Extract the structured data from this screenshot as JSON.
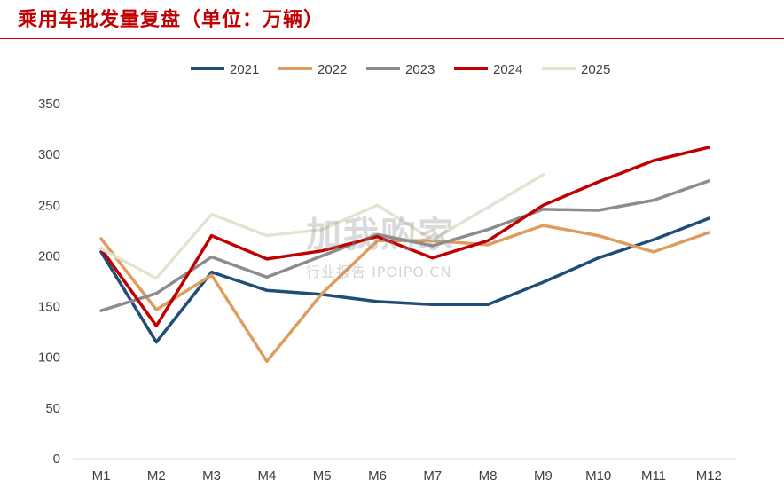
{
  "title": "乘用车批发量复盘（单位：万辆）",
  "watermark": {
    "main": "加我购家",
    "sub": "行业报告 IPOIPO.CN"
  },
  "chart_data": {
    "type": "line",
    "categories": [
      "M1",
      "M2",
      "M3",
      "M4",
      "M5",
      "M6",
      "M7",
      "M8",
      "M9",
      "M10",
      "M11",
      "M12"
    ],
    "ylim": [
      0,
      350
    ],
    "yticks": [
      0,
      50,
      100,
      150,
      200,
      250,
      300,
      350
    ],
    "grid": false,
    "legend_position": "top",
    "series": [
      {
        "name": "2021",
        "color": "#1f4e79",
        "values": [
          204,
          115,
          184,
          166,
          162,
          155,
          152,
          152,
          174,
          198,
          216,
          237
        ]
      },
      {
        "name": "2022",
        "color": "#dd9d5c",
        "values": [
          217,
          147,
          181,
          96,
          163,
          215,
          215,
          211,
          230,
          220,
          204,
          223
        ]
      },
      {
        "name": "2023",
        "color": "#8c8c8c",
        "values": [
          146,
          163,
          199,
          179,
          200,
          221,
          210,
          226,
          246,
          245,
          255,
          274
        ]
      },
      {
        "name": "2024",
        "color": "#c00000",
        "values": [
          207,
          131,
          220,
          197,
          205,
          219,
          198,
          215,
          250,
          273,
          294,
          307
        ]
      },
      {
        "name": "2025",
        "color": "#e6e2d3",
        "values": [
          207,
          178,
          241,
          220,
          226,
          250,
          216,
          248,
          280,
          null,
          null,
          null
        ]
      }
    ]
  }
}
